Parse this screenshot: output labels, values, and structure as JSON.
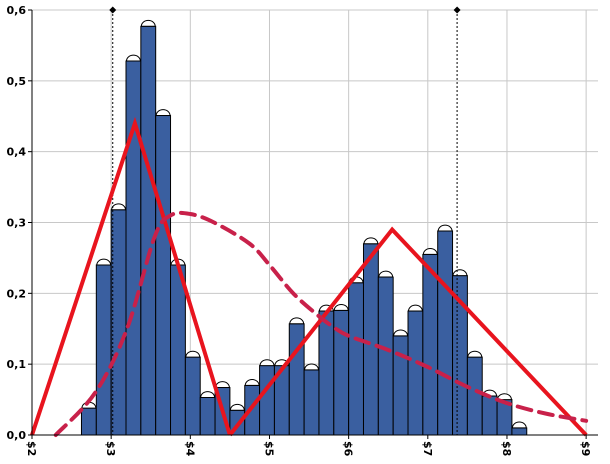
{
  "chart_data": {
    "type": "bar",
    "title": "",
    "xlabel": "",
    "ylabel": "",
    "xlim": [
      2,
      9.15
    ],
    "ylim": [
      0,
      0.6
    ],
    "grid": true,
    "y_ticks": [
      0,
      0.1,
      0.2,
      0.3,
      0.4,
      0.5,
      0.6
    ],
    "y_tick_labels": [
      "0,0",
      "0,1",
      "0,2",
      "0,3",
      "0,4",
      "0,5",
      "0,6"
    ],
    "x_ticks": [
      2,
      3,
      4,
      5,
      6,
      7,
      8,
      9
    ],
    "x_tick_labels": [
      "$2",
      "$3",
      "$4",
      "$5",
      "$6",
      "$7",
      "$8",
      "$9"
    ],
    "colors": {
      "bar_fill": "#3a5fa0",
      "bar_stroke": "#000000",
      "triangle": "#e8141e",
      "dashed_curve": "#c8214a",
      "grid": "#c8c8c8"
    },
    "histogram": {
      "bin_width": 0.1875,
      "bin_starts": [
        2.625,
        2.8125,
        3.0,
        3.1875,
        3.375,
        3.5625,
        3.75,
        3.9375,
        4.125,
        4.3125,
        4.5,
        4.6875,
        4.875,
        5.0625,
        5.25,
        5.4375,
        5.625,
        5.8125,
        6.0,
        6.1875,
        6.375,
        6.5625,
        6.75,
        6.9375,
        7.125,
        7.3125,
        7.5,
        7.6875,
        7.875,
        8.0625
      ],
      "values": [
        0.038,
        0.24,
        0.318,
        0.528,
        0.577,
        0.451,
        0.24,
        0.11,
        0.053,
        0.067,
        0.035,
        0.07,
        0.098,
        0.098,
        0.157,
        0.092,
        0.175,
        0.176,
        0.215,
        0.27,
        0.223,
        0.14,
        0.175,
        0.255,
        0.288,
        0.225,
        0.11,
        0.055,
        0.05,
        0.01
      ]
    },
    "markers": [
      {
        "x": 3.02,
        "y": 0.6
      },
      {
        "x": 7.37,
        "y": 0.6
      }
    ],
    "triangles": [
      {
        "points": [
          [
            2.0,
            0.0
          ],
          [
            3.3,
            0.44
          ],
          [
            4.5,
            0.0
          ]
        ]
      },
      {
        "points": [
          [
            4.5,
            0.0
          ],
          [
            6.55,
            0.29
          ],
          [
            9.0,
            0.0
          ]
        ]
      }
    ],
    "dashed_curve": {
      "points": [
        [
          2.3,
          0.0
        ],
        [
          2.8,
          0.06
        ],
        [
          3.2,
          0.15
        ],
        [
          3.55,
          0.28
        ],
        [
          3.75,
          0.31
        ],
        [
          4.0,
          0.312
        ],
        [
          4.3,
          0.3
        ],
        [
          4.75,
          0.27
        ],
        [
          5.0,
          0.24
        ],
        [
          5.3,
          0.2
        ],
        [
          5.6,
          0.17
        ],
        [
          5.8,
          0.153
        ],
        [
          6.0,
          0.14
        ],
        [
          6.5,
          0.12
        ],
        [
          7.0,
          0.096
        ],
        [
          7.5,
          0.068
        ],
        [
          8.0,
          0.045
        ],
        [
          8.5,
          0.03
        ],
        [
          9.0,
          0.02
        ]
      ]
    }
  }
}
